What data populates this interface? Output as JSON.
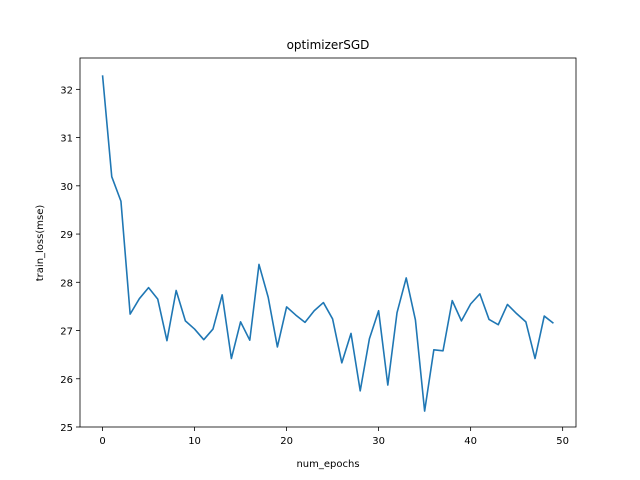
{
  "chart_data": {
    "type": "line",
    "title": "optimizerSGD",
    "xlabel": "num_epochs",
    "ylabel": "train_loss(mse)",
    "xlim": [
      -2.45,
      51.45
    ],
    "ylim": [
      25.0,
      32.65
    ],
    "xticks": [
      0,
      10,
      20,
      30,
      40,
      50
    ],
    "yticks": [
      25,
      26,
      27,
      28,
      29,
      30,
      31,
      32
    ],
    "grid": false,
    "line_color": "#1f77b4",
    "series": [
      {
        "x": [
          0,
          1,
          2,
          3,
          4,
          5,
          6,
          7,
          8,
          9,
          10,
          11,
          12,
          13,
          14,
          15,
          16,
          17,
          18,
          19,
          20,
          21,
          22,
          23,
          24,
          25,
          26,
          27,
          28,
          29,
          30,
          31,
          32,
          33,
          34,
          35,
          36,
          37,
          38,
          39,
          40,
          41,
          42,
          43,
          44,
          45,
          46,
          47,
          48,
          49
        ],
        "values": [
          32.29,
          30.19,
          29.68,
          27.34,
          27.66,
          27.89,
          27.65,
          26.79,
          27.83,
          27.2,
          27.03,
          26.81,
          27.03,
          27.74,
          26.42,
          27.18,
          26.8,
          28.37,
          27.69,
          26.66,
          27.49,
          27.32,
          27.17,
          27.41,
          27.58,
          27.24,
          26.33,
          26.94,
          25.75,
          26.83,
          27.41,
          25.87,
          27.37,
          28.09,
          27.22,
          25.33,
          26.6,
          26.58,
          27.62,
          27.2,
          27.55,
          27.76,
          27.23,
          27.12,
          27.54,
          27.35,
          27.18,
          26.42,
          27.3,
          27.15
        ]
      }
    ]
  }
}
